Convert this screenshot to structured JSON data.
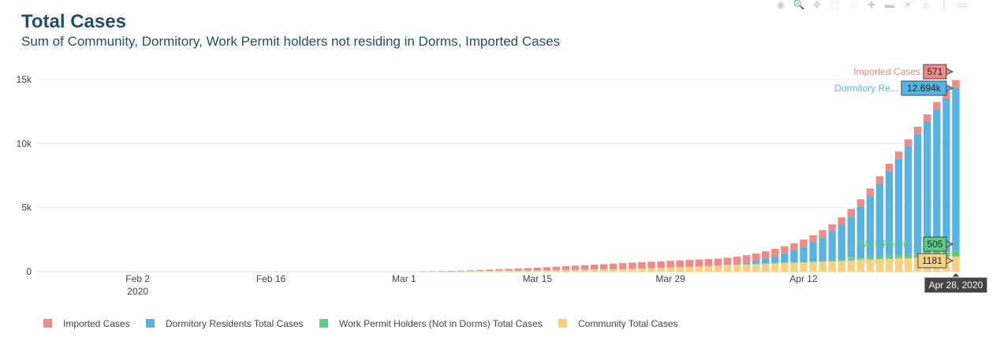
{
  "title": "Total Cases",
  "subtitle": "Sum of Community, Dormitory, Work Permit holders not residing in Dorms, Imported Cases",
  "modebar": [
    {
      "name": "camera-icon",
      "glyph": "◉"
    },
    {
      "name": "zoom-icon",
      "glyph": "🔍"
    },
    {
      "name": "pan-icon",
      "glyph": "✥"
    },
    {
      "name": "box-select-icon",
      "glyph": "⬚"
    },
    {
      "name": "lasso-icon",
      "glyph": "◌"
    },
    {
      "name": "zoom-in-icon",
      "glyph": "✚"
    },
    {
      "name": "zoom-out-icon",
      "glyph": "▬"
    },
    {
      "name": "autoscale-icon",
      "glyph": "✕"
    },
    {
      "name": "home-icon",
      "glyph": "⌂"
    },
    {
      "name": "spike-lines-icon",
      "glyph": "┆"
    },
    {
      "name": "hover-closest-icon",
      "glyph": "▭"
    }
  ],
  "chart_data": {
    "type": "bar",
    "barmode": "stack",
    "x_start": "2020-01-23",
    "x_end": "2020-04-28",
    "x_ticks": [
      {
        "date": "2020-02-02",
        "label": "Feb 2",
        "sublabel": "2020"
      },
      {
        "date": "2020-02-16",
        "label": "Feb 16"
      },
      {
        "date": "2020-03-01",
        "label": "Mar 1"
      },
      {
        "date": "2020-03-15",
        "label": "Mar 15"
      },
      {
        "date": "2020-03-29",
        "label": "Mar 29"
      },
      {
        "date": "2020-04-12",
        "label": "Apr 12"
      }
    ],
    "y_ticks": [
      {
        "value": 0,
        "label": "0"
      },
      {
        "value": 5000,
        "label": "5k"
      },
      {
        "value": 10000,
        "label": "10k"
      },
      {
        "value": 15000,
        "label": "15k"
      }
    ],
    "ylim": [
      0,
      15800
    ],
    "grid": true,
    "legend_position": "bottom",
    "series": [
      {
        "name": "Community Total Cases",
        "color": "#f8d07f",
        "values": [
          0,
          0,
          0,
          0,
          0,
          0,
          0,
          0,
          0,
          0,
          0,
          0,
          0,
          0,
          0,
          0,
          0,
          0,
          0,
          0,
          0,
          0,
          0,
          0,
          0,
          0,
          0,
          0,
          0,
          0,
          0,
          0,
          0,
          0,
          0,
          0,
          0,
          0,
          0,
          0,
          10,
          15,
          20,
          25,
          30,
          40,
          50,
          60,
          70,
          80,
          90,
          100,
          110,
          120,
          130,
          140,
          150,
          160,
          170,
          180,
          190,
          210,
          230,
          250,
          270,
          290,
          320,
          350,
          380,
          410,
          440,
          470,
          500,
          530,
          560,
          590,
          620,
          650,
          680,
          700,
          730,
          750,
          780,
          810,
          840,
          870,
          900,
          930,
          960,
          990,
          1020,
          1050,
          1080,
          1110,
          1140,
          1160,
          1181
        ]
      },
      {
        "name": "Work Permit Holders (Not in Dorms) Total Cases",
        "color": "#5ecb84",
        "values": [
          0,
          0,
          0,
          0,
          0,
          0,
          0,
          0,
          0,
          0,
          0,
          0,
          0,
          0,
          0,
          0,
          0,
          0,
          0,
          0,
          0,
          0,
          0,
          0,
          0,
          0,
          0,
          0,
          0,
          0,
          0,
          0,
          0,
          0,
          0,
          0,
          0,
          0,
          0,
          0,
          0,
          0,
          0,
          0,
          0,
          0,
          0,
          0,
          0,
          0,
          0,
          0,
          0,
          0,
          0,
          0,
          0,
          0,
          0,
          0,
          0,
          0,
          0,
          0,
          0,
          0,
          0,
          0,
          0,
          0,
          0,
          0,
          5,
          10,
          15,
          20,
          30,
          40,
          50,
          60,
          70,
          80,
          100,
          120,
          140,
          160,
          180,
          200,
          230,
          260,
          290,
          320,
          360,
          400,
          440,
          470,
          505
        ]
      },
      {
        "name": "Dormitory Residents Total Cases",
        "color": "#56b4e3",
        "values": [
          0,
          0,
          0,
          0,
          0,
          0,
          0,
          0,
          0,
          0,
          0,
          0,
          0,
          0,
          0,
          0,
          0,
          0,
          0,
          0,
          0,
          0,
          0,
          0,
          0,
          0,
          0,
          0,
          0,
          0,
          0,
          0,
          0,
          0,
          0,
          0,
          0,
          0,
          0,
          0,
          0,
          0,
          0,
          0,
          0,
          0,
          0,
          0,
          0,
          0,
          0,
          0,
          0,
          0,
          0,
          0,
          0,
          0,
          0,
          0,
          0,
          0,
          0,
          0,
          0,
          0,
          0,
          0,
          0,
          0,
          0,
          0,
          30,
          80,
          150,
          250,
          380,
          530,
          700,
          900,
          1150,
          1450,
          1800,
          2200,
          2700,
          3300,
          4000,
          4800,
          5700,
          6600,
          7500,
          8400,
          9300,
          10200,
          11100,
          11900,
          12694
        ]
      },
      {
        "name": "Imported Cases",
        "color": "#f08a87",
        "values": [
          0,
          0,
          0,
          0,
          0,
          0,
          0,
          0,
          0,
          0,
          0,
          0,
          0,
          0,
          0,
          0,
          0,
          0,
          0,
          0,
          0,
          0,
          0,
          0,
          0,
          0,
          0,
          0,
          0,
          0,
          0,
          0,
          0,
          0,
          0,
          0,
          0,
          0,
          0,
          0,
          20,
          25,
          30,
          40,
          50,
          60,
          80,
          100,
          120,
          140,
          160,
          180,
          200,
          230,
          260,
          290,
          320,
          350,
          380,
          410,
          440,
          460,
          480,
          500,
          510,
          520,
          530,
          535,
          540,
          545,
          550,
          552,
          554,
          556,
          558,
          560,
          561,
          562,
          563,
          564,
          565,
          566,
          566,
          567,
          567,
          568,
          568,
          569,
          569,
          570,
          570,
          570,
          571,
          571,
          571,
          571,
          571
        ]
      }
    ],
    "hover": {
      "date_label": "Apr 28, 2020",
      "items": [
        {
          "name": "Imported Cases",
          "label": "Imported Cases",
          "value": "571"
        },
        {
          "name": "Dormitory Residents Total Cases",
          "label": "Dormitory Re...",
          "value": "12.694k"
        },
        {
          "name": "Work Permit Holders (Not in Dorms) Total Cases",
          "label": "Work Permit ...",
          "value": "505"
        },
        {
          "name": "Community Total Cases",
          "label": "Community To...",
          "value": "1181"
        }
      ]
    },
    "legend": [
      {
        "name": "Imported Cases",
        "color": "#f08a87"
      },
      {
        "name": "Dormitory Residents Total Cases",
        "color": "#56b4e3"
      },
      {
        "name": "Work Permit Holders (Not in Dorms) Total Cases",
        "color": "#5ecb84"
      },
      {
        "name": "Community Total Cases",
        "color": "#f8d07f"
      }
    ]
  }
}
